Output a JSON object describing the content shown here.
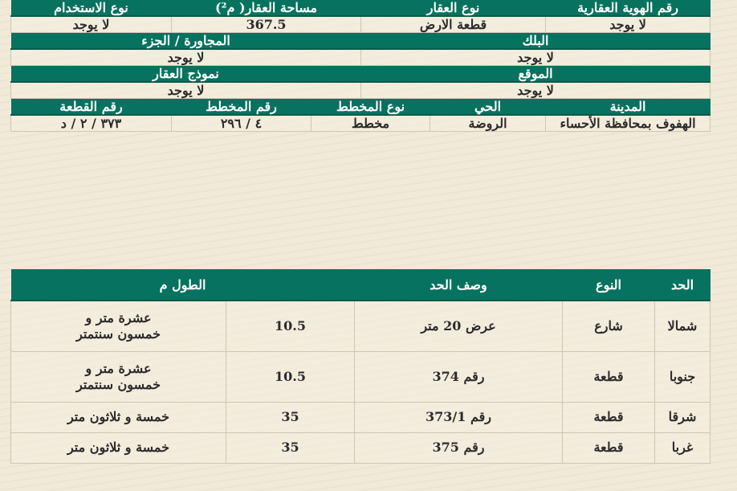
{
  "property": {
    "row1_headers": [
      "رقم الهوية العقارية",
      "نوع العقار",
      "مساحة العقار( م²)",
      "نوع الاستخدام"
    ],
    "row1_values": [
      "لا يوجد",
      "قطعة الارض",
      "367.5",
      "لا يوجد"
    ],
    "row2_headers": [
      "البلك",
      "المجاورة / الجزء"
    ],
    "row2_values": [
      "لا يوجد",
      "لا يوجد"
    ],
    "row3_headers": [
      "الموقع",
      "نموذج العقار"
    ],
    "row3_values": [
      "لا يوجد",
      "لا يوجد"
    ],
    "row4_headers": [
      "المدينة",
      "الحي",
      "نوع المخطط",
      "رقم المخطط",
      "رقم القطعة"
    ],
    "row4_values": [
      "الهفوف بمحافظة الأحساء",
      "الروضة",
      "مخطط",
      "٤ / ٢٩٦",
      "٣٧٣ / ٢ / د"
    ]
  },
  "boundaries": {
    "headers": [
      "الحد",
      "النوع",
      "وصف الحد",
      "الطول م"
    ],
    "rows": [
      {
        "side": "شمالا",
        "type": "شارع",
        "desc": "عرض 20 متر",
        "length": "10.5",
        "length_text": "عشرة متر و خمسون سنتمتر"
      },
      {
        "side": "جنوبا",
        "type": "قطعة",
        "desc": "رقم 374",
        "length": "10.5",
        "length_text": "عشرة متر و خمسون سنتمتر"
      },
      {
        "side": "شرقا",
        "type": "قطعة",
        "desc": "رقم 373/1",
        "length": "35",
        "length_text": "خمسة و ثلاثون متر"
      },
      {
        "side": "غربا",
        "type": "قطعة",
        "desc": "رقم 375",
        "length": "35",
        "length_text": "خمسة و ثلاثون متر"
      }
    ]
  },
  "colors": {
    "header": "#07725f",
    "background": "#f1ead9"
  }
}
